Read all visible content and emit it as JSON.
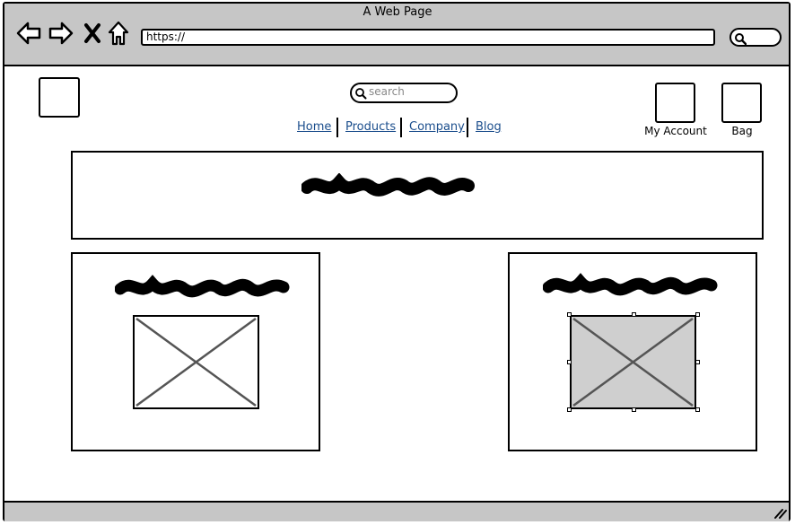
{
  "browser": {
    "title": "A Web Page",
    "url": "https://",
    "icons": [
      "back-arrow-icon",
      "forward-arrow-icon",
      "close-x-icon",
      "home-icon",
      "search-icon"
    ]
  },
  "header": {
    "search_placeholder": "search",
    "nav": [
      {
        "label": "Home"
      },
      {
        "label": "Products"
      },
      {
        "label": "Company"
      },
      {
        "label": "Blog"
      }
    ],
    "account_label": "My Account",
    "bag_label": "Bag"
  },
  "colors": {
    "chrome": "#c6c6c6",
    "link": "#1a4d8c",
    "selected_image": "#cfcfcf"
  }
}
